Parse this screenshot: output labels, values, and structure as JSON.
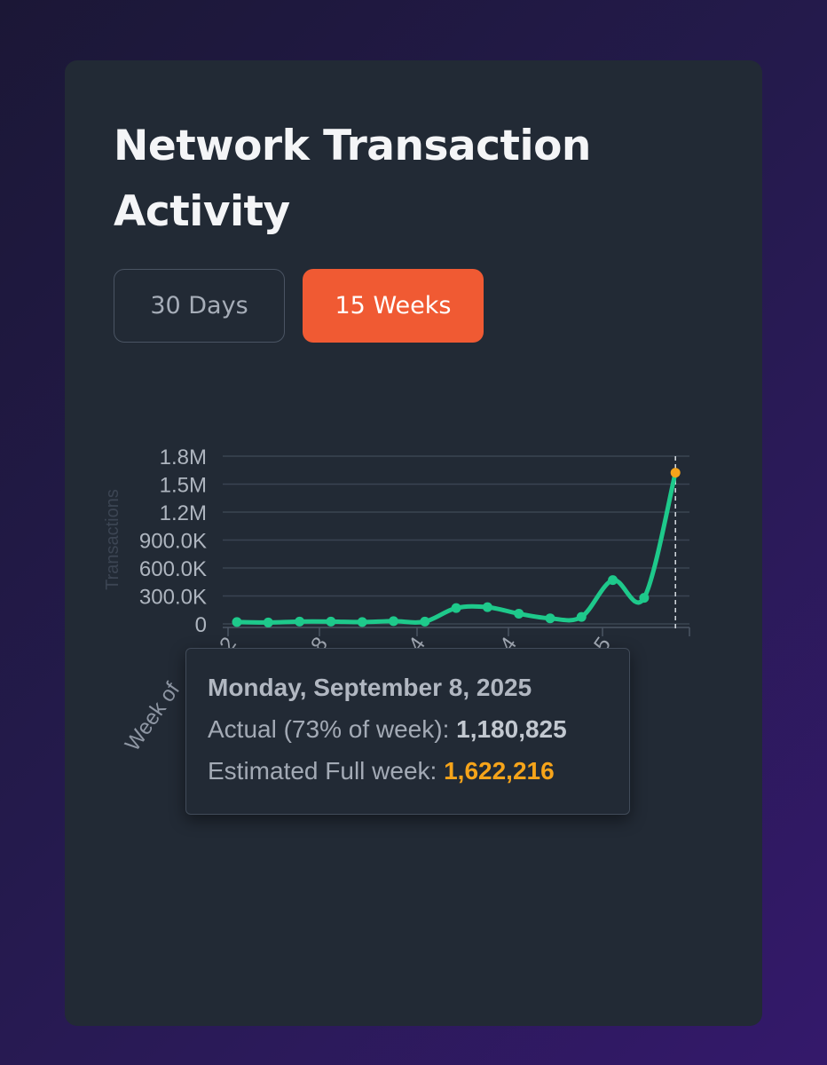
{
  "card": {
    "title": "Network Transaction Activity"
  },
  "range_buttons": {
    "days_label": "30 Days",
    "weeks_label": "15 Weeks",
    "active": "15 Weeks"
  },
  "colors": {
    "accent": "#f05a33",
    "line": "#1ec98b",
    "estimate": "#f6a41a",
    "card_bg": "#222a35"
  },
  "tooltip": {
    "date": "Monday, September 8, 2025",
    "actual_label": "Actual (73% of week): ",
    "actual_value": "1,180,825",
    "estimate_label": "Estimated Full week: ",
    "estimate_value": "1,622,216"
  },
  "chart_data": {
    "type": "line",
    "ylabel": "Transactions",
    "xlabel": "Week of",
    "ylim": [
      0,
      1800000
    ],
    "y_ticks": [
      {
        "value": 0,
        "label": "0"
      },
      {
        "value": 300000,
        "label": "300.0K"
      },
      {
        "value": 600000,
        "label": "600.0K"
      },
      {
        "value": 900000,
        "label": "900.0K"
      },
      {
        "value": 1200000,
        "label": "1.2M"
      },
      {
        "value": 1500000,
        "label": "1.5M"
      },
      {
        "value": 1800000,
        "label": "1.8M"
      }
    ],
    "x_tick_labels": [
      "2",
      "8",
      "4",
      "4",
      "5"
    ],
    "grid": true,
    "series": [
      {
        "values": [
          20000,
          15000,
          25000,
          25000,
          20000,
          30000,
          25000,
          170000,
          180000,
          110000,
          60000,
          75000,
          470000,
          280000,
          1622216
        ]
      }
    ],
    "estimate_point": {
      "week_index": 14,
      "value": 1622216
    }
  }
}
